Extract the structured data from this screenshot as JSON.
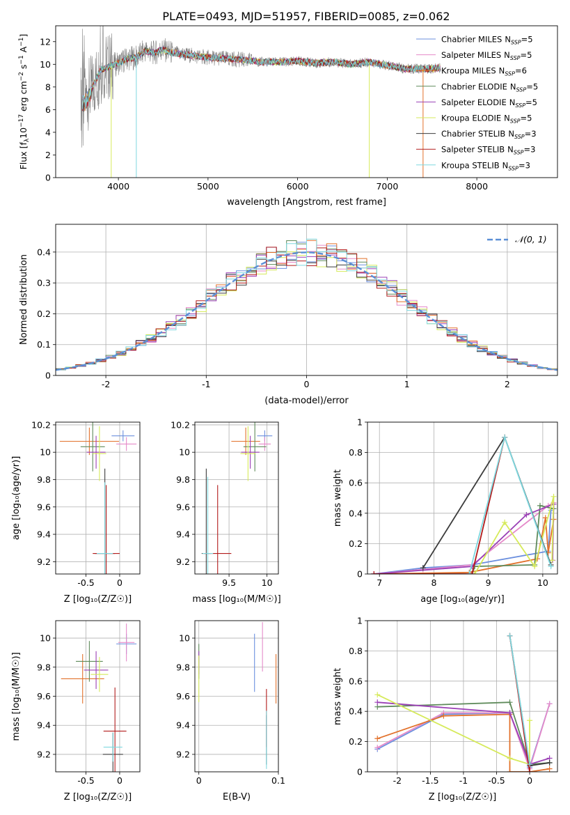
{
  "figure_title": "PLATE=0493, MJD=51957, FIBERID=0085, z=0.062",
  "colors": {
    "Chabrier MILES": "#6b8fde",
    "Salpeter MILES": "#e58ac9",
    "Kroupa MILES": "#e2712b",
    "Chabrier ELODIE": "#5e8a5a",
    "Salpeter ELODIE": "#9a3fb5",
    "Kroupa ELODIE": "#d6ea5a",
    "Chabrier STELIB": "#3b3b3b",
    "Salpeter STELIB": "#b21b1b",
    "Kroupa STELIB": "#7fd8df",
    "data": "#808080",
    "gaussian": "#5b8fd6"
  },
  "chart_data": [
    {
      "type": "line",
      "panel": "spectrum",
      "title": "PLATE=0493, MJD=51957, FIBERID=0085, z=0.062",
      "xlabel": "wavelength [Angstrom, rest frame]",
      "ylabel_main": "Flux [f",
      "ylabel_sub": "λ",
      "ylabel_rest": "10",
      "ylabel_sup": "−17",
      "ylabel_tail": " erg cm",
      "ylabel_sup2": "−2",
      "ylabel_tail2": " s",
      "ylabel_sup3": "−1",
      "ylabel_tail3": " A",
      "ylabel_sup4": "−1",
      "ylabel_end": "]",
      "xlim": [
        3300,
        8900
      ],
      "ylim": [
        0,
        13.4
      ],
      "xticks": [
        4000,
        5000,
        6000,
        7000,
        8000
      ],
      "yticks": [
        0,
        2,
        4,
        6,
        8,
        10,
        12
      ],
      "grid": false,
      "legend_position": "top-right",
      "legend": [
        {
          "name": "Chabrier MILES",
          "nssp": "5"
        },
        {
          "name": "Salpeter MILES",
          "nssp": "5"
        },
        {
          "name": "Kroupa MILES",
          "nssp": "6"
        },
        {
          "name": "Chabrier ELODIE",
          "nssp": "5"
        },
        {
          "name": "Salpeter ELODIE",
          "nssp": "5"
        },
        {
          "name": "Kroupa ELODIE",
          "nssp": "5"
        },
        {
          "name": "Chabrier STELIB",
          "nssp": "3"
        },
        {
          "name": "Salpeter STELIB",
          "nssp": "3"
        },
        {
          "name": "Kroupa STELIB",
          "nssp": "3"
        }
      ],
      "legend_nssp_label": "N",
      "legend_nssp_sub": "SSP",
      "data_envelope": {
        "x": [
          3580,
          3620,
          3700,
          3800,
          3900,
          4000,
          4100,
          4200,
          4300,
          4400,
          4500,
          4600,
          4700,
          4800,
          5000,
          5200,
          5400,
          5600,
          5800,
          6000,
          6200,
          6400,
          6600,
          6800,
          7000,
          7200,
          7400,
          7500,
          7600
        ],
        "y": [
          7.0,
          6.8,
          7.8,
          9.5,
          9.8,
          10.1,
          10.5,
          10.6,
          11.2,
          11.0,
          11.3,
          11.0,
          10.9,
          10.8,
          10.6,
          10.5,
          10.4,
          10.2,
          10.2,
          10.3,
          10.1,
          10.2,
          10.0,
          10.2,
          9.9,
          9.6,
          9.6,
          9.6,
          9.7
        ]
      }
    },
    {
      "type": "bar",
      "panel": "residual histogram",
      "xlabel": "(data-model)/error",
      "ylabel": "Normed distribution",
      "xlim": [
        -2.5,
        2.5
      ],
      "ylim": [
        0,
        0.49
      ],
      "xticks": [
        -2,
        -1,
        0,
        1,
        2
      ],
      "yticks": [
        0.0,
        0.1,
        0.2,
        0.3,
        0.4
      ],
      "grid": true,
      "legend_position": "top-right",
      "legend_label": "𝒩(0, 1)",
      "gaussian": {
        "mean": 0,
        "sigma": 1
      },
      "bin_width": 0.1
    },
    {
      "type": "scatter",
      "panel": "age vs Z",
      "xlabel": "Z [log₁₀(Z/Z☉)]",
      "ylabel": "age  [log₁₀(age/yr)]",
      "xlim": [
        -0.95,
        0.3
      ],
      "ylim": [
        9.11,
        10.22
      ],
      "xticks": [
        -0.5,
        0.0
      ],
      "yticks": [
        9.2,
        9.4,
        9.6,
        9.8,
        10.0,
        10.2
      ],
      "grid": true,
      "points": [
        {
          "series": "Chabrier MILES",
          "x": 0.05,
          "y": 10.12,
          "xerr": 0.17,
          "yerr": 0.04
        },
        {
          "series": "Salpeter MILES",
          "x": 0.1,
          "y": 10.06,
          "xerr": 0.15,
          "yerr": 0.05
        },
        {
          "series": "Kroupa MILES",
          "x": -0.45,
          "y": 10.08,
          "xerr": 0.44,
          "yerr": 0.1
        },
        {
          "series": "Chabrier ELODIE",
          "x": -0.4,
          "y": 10.04,
          "xerr": 0.18,
          "yerr": 0.18
        },
        {
          "series": "Salpeter ELODIE",
          "x": -0.35,
          "y": 10.0,
          "xerr": 0.14,
          "yerr": 0.12
        },
        {
          "series": "Kroupa ELODIE",
          "x": -0.3,
          "y": 9.99,
          "xerr": 0.1,
          "yerr": 0.2
        },
        {
          "series": "Chabrier STELIB",
          "x": -0.22,
          "y": 9.26,
          "xerr": 0.15,
          "yerr": 0.62
        },
        {
          "series": "Salpeter STELIB",
          "x": -0.2,
          "y": 9.26,
          "xerr": 0.2,
          "yerr": 0.5
        },
        {
          "series": "Kroupa STELIB",
          "x": -0.22,
          "y": 9.26,
          "xerr": 0.12,
          "yerr": 0.52
        }
      ]
    },
    {
      "type": "scatter",
      "panel": "age vs mass",
      "xlabel": "mass [log₁₀(M/M☉)]",
      "ylabel": "",
      "xlim": [
        9.05,
        10.15
      ],
      "ylim": [
        9.11,
        10.22
      ],
      "xticks": [
        9.5,
        10.0
      ],
      "yticks": [
        9.2,
        9.4,
        9.6,
        9.8,
        10.0,
        10.2
      ],
      "grid": true,
      "points": [
        {
          "series": "Chabrier MILES",
          "x": 9.97,
          "y": 10.12,
          "xerr": 0.1,
          "yerr": 0.04
        },
        {
          "series": "Salpeter MILES",
          "x": 9.97,
          "y": 10.06,
          "xerr": 0.08,
          "yerr": 0.05
        },
        {
          "series": "Kroupa MILES",
          "x": 9.72,
          "y": 10.08,
          "xerr": 0.19,
          "yerr": 0.1
        },
        {
          "series": "Chabrier ELODIE",
          "x": 9.84,
          "y": 10.04,
          "xerr": 0.15,
          "yerr": 0.18
        },
        {
          "series": "Salpeter ELODIE",
          "x": 9.78,
          "y": 10.0,
          "xerr": 0.12,
          "yerr": 0.12
        },
        {
          "series": "Kroupa ELODIE",
          "x": 9.75,
          "y": 9.99,
          "xerr": 0.1,
          "yerr": 0.2
        },
        {
          "series": "Chabrier STELIB",
          "x": 9.2,
          "y": 9.26,
          "xerr": 0.06,
          "yerr": 0.62
        },
        {
          "series": "Salpeter STELIB",
          "x": 9.35,
          "y": 9.26,
          "xerr": 0.18,
          "yerr": 0.5
        },
        {
          "series": "Kroupa STELIB",
          "x": 9.22,
          "y": 9.26,
          "xerr": 0.07,
          "yerr": 0.56
        }
      ]
    },
    {
      "type": "line",
      "panel": "mass weight vs age",
      "xlabel": "age  [log₁₀(age/yr)]",
      "ylabel": "mass weight",
      "xlim": [
        6.78,
        10.27
      ],
      "ylim": [
        0.0,
        1.0
      ],
      "xticks": [
        7,
        8,
        9,
        10
      ],
      "yticks": [
        0.0,
        0.2,
        0.4,
        0.6,
        0.8,
        1.0
      ],
      "grid": true,
      "series": [
        {
          "name": "Chabrier MILES",
          "x": [
            6.9,
            7.8,
            8.7,
            10.1,
            10.15
          ],
          "y": [
            0.0,
            0.04,
            0.06,
            0.15,
            0.42
          ]
        },
        {
          "name": "Salpeter MILES",
          "x": [
            6.9,
            7.8,
            8.7,
            10.1,
            10.2
          ],
          "y": [
            0.0,
            0.03,
            0.06,
            0.45,
            0.47
          ]
        },
        {
          "name": "Kroupa MILES",
          "x": [
            6.9,
            8.65,
            9.9,
            10.05,
            10.1,
            10.2
          ],
          "y": [
            0.0,
            0.01,
            0.1,
            0.37,
            0.14,
            0.36
          ]
        },
        {
          "name": "Chabrier ELODIE",
          "x": [
            8.7,
            8.75,
            9.85,
            9.95,
            10.2
          ],
          "y": [
            0.0,
            0.05,
            0.06,
            0.45,
            0.43
          ]
        },
        {
          "name": "Salpeter ELODIE",
          "x": [
            6.9,
            8.7,
            9.7,
            10.2,
            10.18
          ],
          "y": [
            0.0,
            0.05,
            0.39,
            0.46,
            0.09
          ]
        },
        {
          "name": "Kroupa ELODIE",
          "x": [
            8.75,
            9.3,
            9.85,
            10.2,
            10.17
          ],
          "y": [
            0.0,
            0.34,
            0.05,
            0.51,
            0.09
          ]
        },
        {
          "name": "Chabrier STELIB",
          "x": [
            7.8,
            9.3,
            10.15
          ],
          "y": [
            0.04,
            0.9,
            0.06
          ]
        },
        {
          "name": "Salpeter STELIB",
          "x": [
            6.9,
            8.7,
            9.3
          ],
          "y": [
            0.0,
            0.0,
            0.9
          ]
        },
        {
          "name": "Kroupa STELIB",
          "x": [
            8.65,
            9.3,
            10.15
          ],
          "y": [
            0.0,
            0.9,
            0.05
          ]
        }
      ]
    },
    {
      "type": "scatter",
      "panel": "mass vs Z",
      "xlabel": "Z [log₁₀(Z/Z☉)]",
      "ylabel": "mass [log₁₀(M/M☉)]",
      "xlim": [
        -0.95,
        0.3
      ],
      "ylim": [
        9.08,
        10.12
      ],
      "xticks": [
        -0.5,
        0.0
      ],
      "yticks": [
        9.2,
        9.4,
        9.6,
        9.8,
        10.0
      ],
      "grid": true,
      "points": [
        {
          "series": "Chabrier MILES",
          "x": 0.1,
          "y": 9.96,
          "xerr": 0.15,
          "yerr": 0.07
        },
        {
          "series": "Salpeter MILES",
          "x": 0.1,
          "y": 9.97,
          "xerr": 0.12,
          "yerr": 0.13
        },
        {
          "series": "Kroupa MILES",
          "x": -0.55,
          "y": 9.72,
          "xerr": 0.32,
          "yerr": 0.17
        },
        {
          "series": "Chabrier ELODIE",
          "x": -0.45,
          "y": 9.84,
          "xerr": 0.2,
          "yerr": 0.14
        },
        {
          "series": "Salpeter ELODIE",
          "x": -0.35,
          "y": 9.78,
          "xerr": 0.18,
          "yerr": 0.13
        },
        {
          "series": "Kroupa ELODIE",
          "x": -0.3,
          "y": 9.75,
          "xerr": 0.13,
          "yerr": 0.12
        },
        {
          "series": "Chabrier STELIB",
          "x": -0.1,
          "y": 9.2,
          "xerr": 0.15,
          "yerr": 0.15
        },
        {
          "series": "Salpeter STELIB",
          "x": -0.07,
          "y": 9.36,
          "xerr": 0.17,
          "yerr": 0.3
        },
        {
          "series": "Kroupa STELIB",
          "x": -0.1,
          "y": 9.25,
          "xerr": 0.14,
          "yerr": 0.1
        }
      ]
    },
    {
      "type": "scatter",
      "panel": "mass vs E(B-V)",
      "xlabel": "E(B-V)",
      "ylabel": "",
      "xlim": [
        -0.005,
        0.1
      ],
      "ylim": [
        9.08,
        10.12
      ],
      "xticks": [
        0.0,
        0.1
      ],
      "yticks": [
        9.2,
        9.4,
        9.6,
        9.8,
        10.0
      ],
      "grid": true,
      "points": [
        {
          "series": "Chabrier MILES",
          "x": 0.07,
          "y": 9.83,
          "yerr": 0.2
        },
        {
          "series": "Salpeter MILES",
          "x": 0.08,
          "y": 9.94,
          "yerr": 0.17
        },
        {
          "series": "Kroupa MILES",
          "x": 0.097,
          "y": 9.72,
          "yerr": 0.17
        },
        {
          "series": "Chabrier ELODIE",
          "x": 0.0,
          "y": 9.84,
          "yerr": 0.12
        },
        {
          "series": "Salpeter ELODIE",
          "x": 0.0,
          "y": 9.83,
          "yerr": 0.08
        },
        {
          "series": "Kroupa ELODIE",
          "x": 0.0,
          "y": 9.72,
          "yerr": 0.16
        },
        {
          "series": "Chabrier STELIB",
          "x": 0.085,
          "y": 9.3,
          "yerr": 0.17
        },
        {
          "series": "Salpeter STELIB",
          "x": 0.085,
          "y": 9.45,
          "yerr": 0.2
        },
        {
          "series": "Kroupa STELIB",
          "x": 0.085,
          "y": 9.3,
          "yerr": 0.2
        }
      ]
    },
    {
      "type": "line",
      "panel": "mass weight vs Z",
      "xlabel": "Z [log₁₀(Z/Z☉)]",
      "ylabel": "mass weight",
      "xlim": [
        -2.45,
        0.42
      ],
      "ylim": [
        0.0,
        1.0
      ],
      "xticks": [
        -2.0,
        -1.5,
        -1.0,
        -0.5,
        0.0
      ],
      "yticks": [
        0.0,
        0.2,
        0.4,
        0.6,
        0.8,
        1.0
      ],
      "grid": true,
      "series": [
        {
          "name": "Chabrier MILES",
          "x": [
            -2.3,
            -1.3,
            -0.3,
            0.0,
            0.3
          ],
          "y": [
            0.15,
            0.38,
            0.39,
            0.03,
            0.45
          ]
        },
        {
          "name": "Salpeter MILES",
          "x": [
            -2.3,
            -1.3,
            -0.3,
            0.0,
            0.3
          ],
          "y": [
            0.16,
            0.39,
            0.39,
            0.02,
            0.45
          ]
        },
        {
          "name": "Kroupa MILES",
          "x": [
            -2.3,
            -1.3,
            -0.3,
            -0.3,
            0.0,
            0.3
          ],
          "y": [
            0.22,
            0.37,
            0.38,
            0.0,
            0.0,
            0.02
          ]
        },
        {
          "name": "Chabrier ELODIE",
          "x": [
            -2.3,
            -0.3,
            0.0,
            0.3
          ],
          "y": [
            0.43,
            0.46,
            0.05,
            0.06
          ]
        },
        {
          "name": "Salpeter ELODIE",
          "x": [
            -2.3,
            -0.3,
            0.0,
            0.3
          ],
          "y": [
            0.46,
            0.39,
            0.05,
            0.09
          ]
        },
        {
          "name": "Kroupa ELODIE",
          "x": [
            -2.3,
            -0.3,
            0.0,
            0.0
          ],
          "y": [
            0.51,
            0.09,
            0.05,
            0.34
          ]
        },
        {
          "name": "Chabrier STELIB",
          "x": [
            -0.3,
            0.0,
            0.3
          ],
          "y": [
            0.9,
            0.04,
            0.06
          ]
        },
        {
          "name": "Salpeter STELIB",
          "x": [
            -0.3,
            0.0,
            0.0
          ],
          "y": [
            0.9,
            0.0,
            0.05
          ]
        },
        {
          "name": "Kroupa STELIB",
          "x": [
            -0.3,
            0.0
          ],
          "y": [
            0.9,
            0.05
          ]
        }
      ]
    }
  ]
}
